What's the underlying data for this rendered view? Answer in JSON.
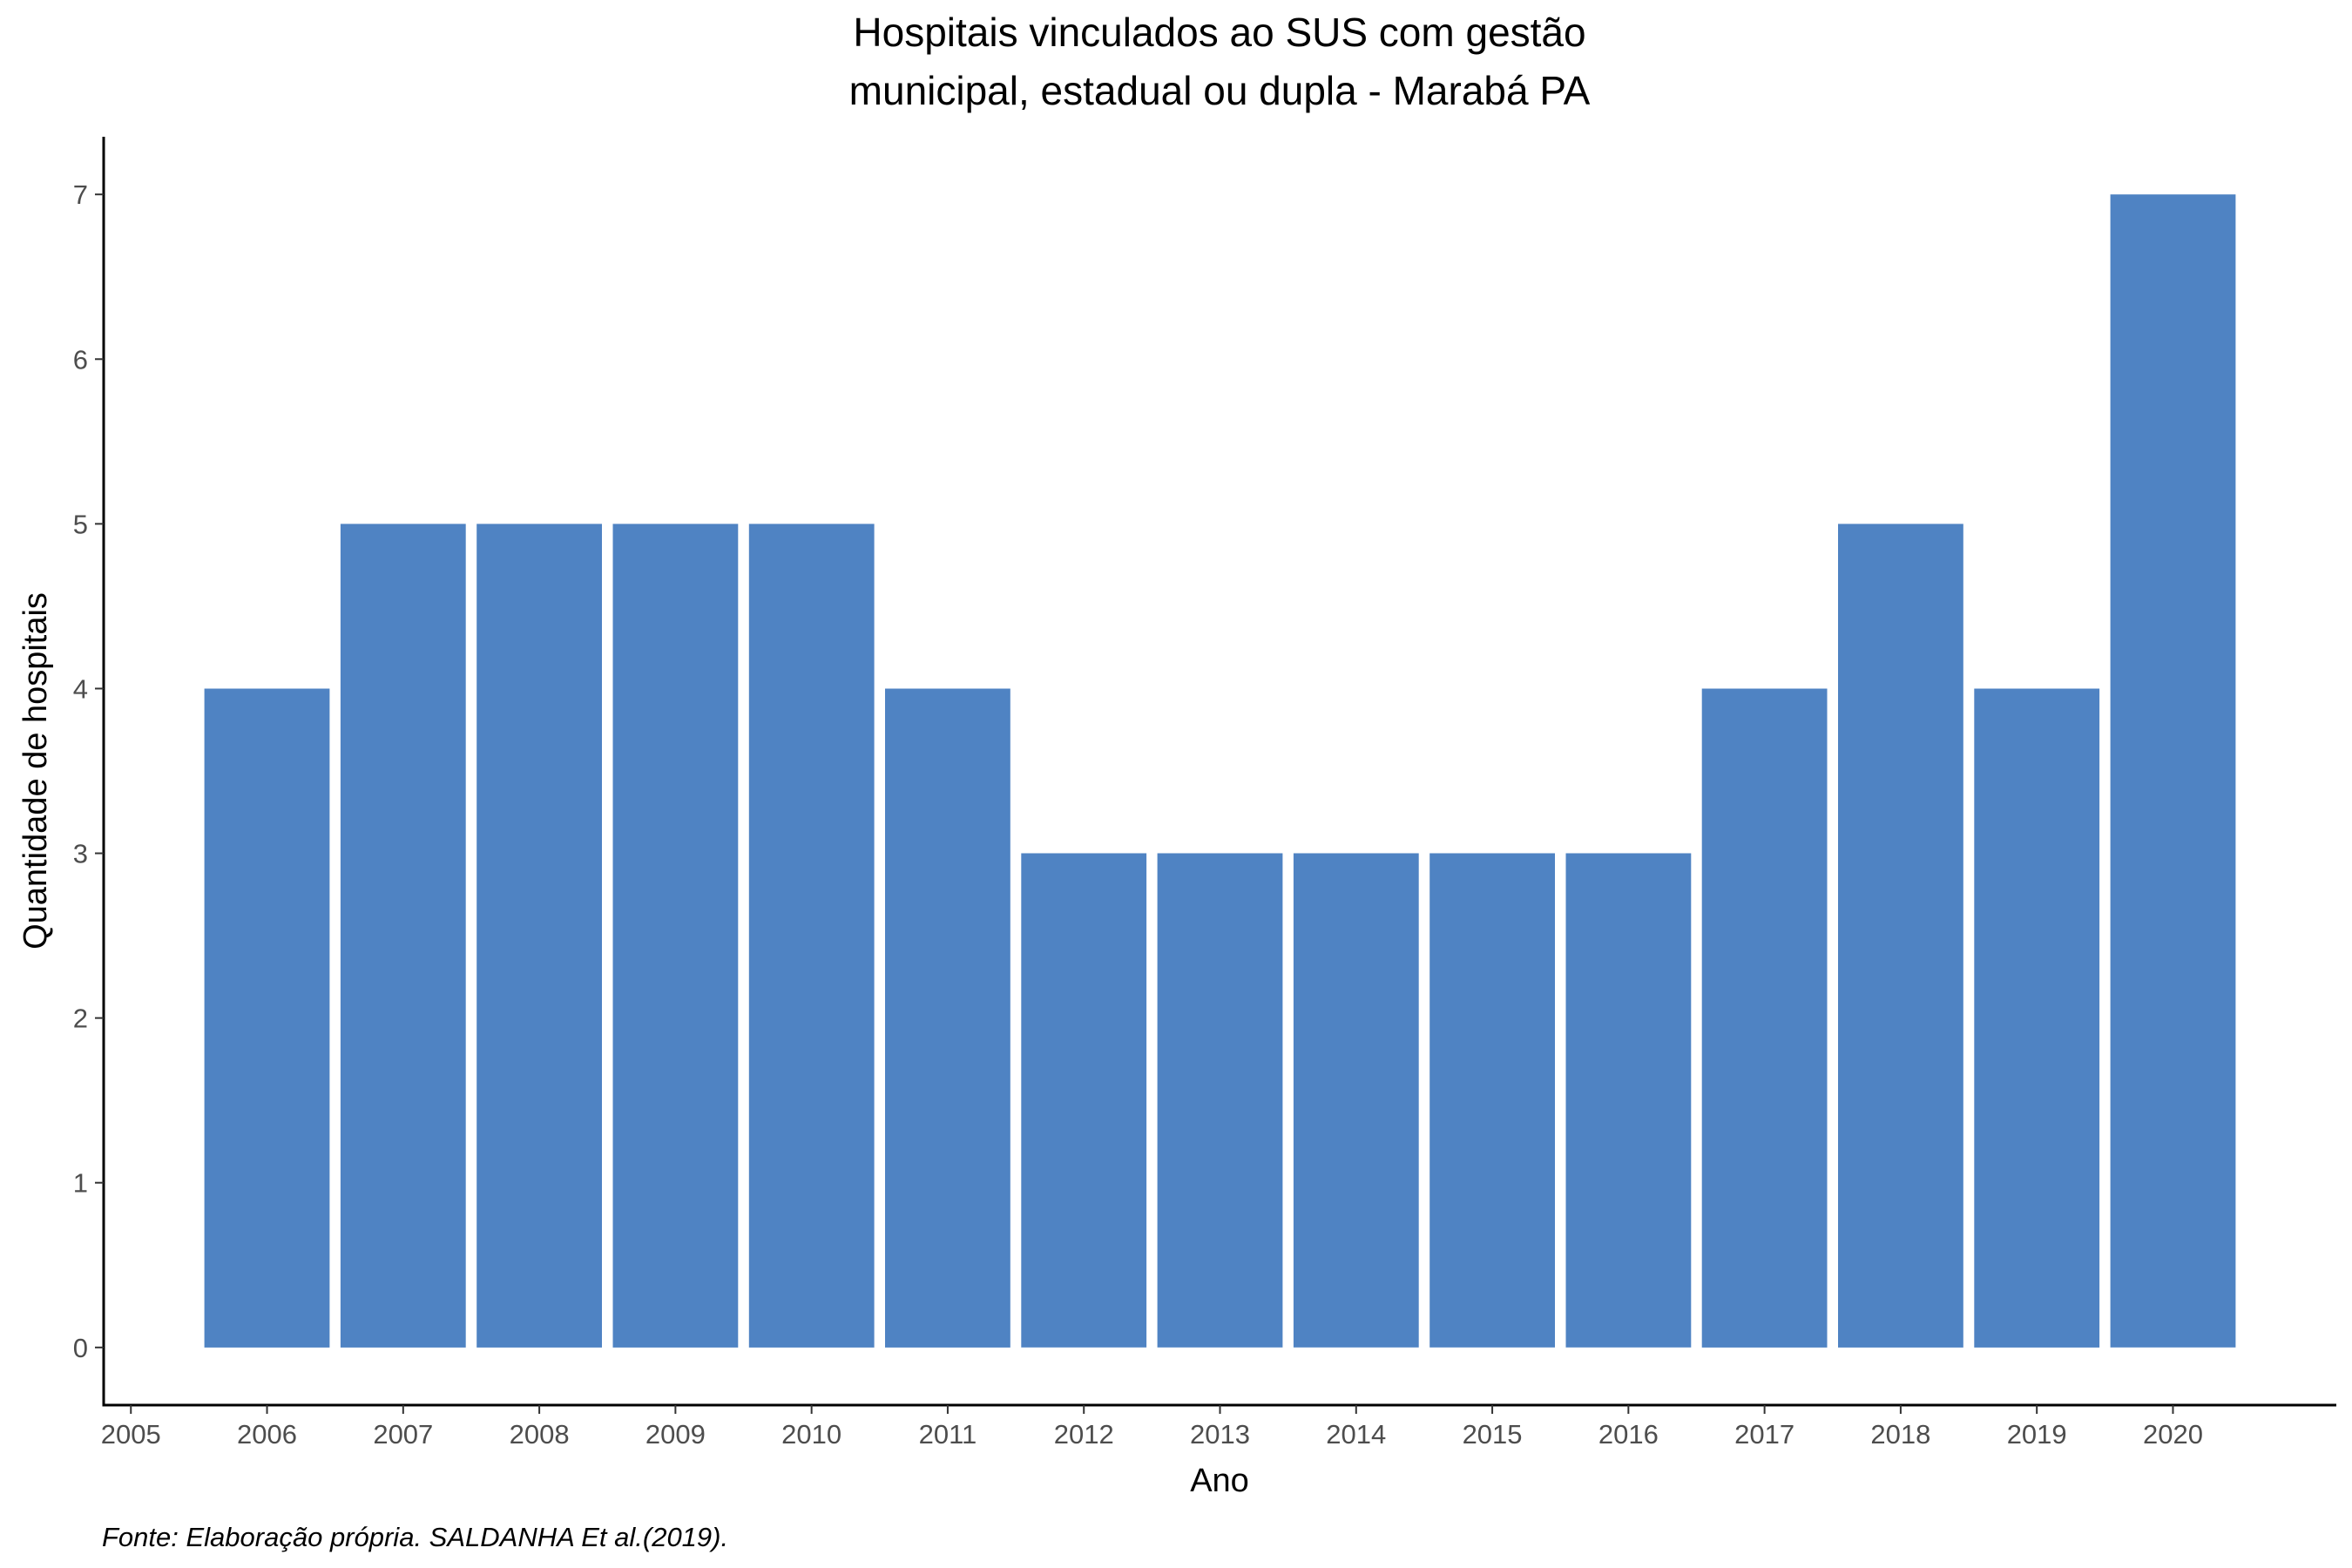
{
  "chart_data": {
    "type": "bar",
    "title_lines": [
      "Hospitais vinculados ao SUS com gestão",
      "municipal, estadual ou dupla -  Marabá PA"
    ],
    "xlabel": "Ano",
    "ylabel": "Quantidade de hospitais",
    "caption": "Fonte: Elaboração própria. SALDANHA Et al.(2019).",
    "categories": [
      2006,
      2007,
      2008,
      2009,
      2010,
      2011,
      2012,
      2013,
      2014,
      2015,
      2016,
      2017,
      2018,
      2019,
      2020
    ],
    "values": [
      4,
      5,
      5,
      5,
      5,
      4,
      3,
      3,
      3,
      3,
      3,
      4,
      5,
      4,
      7
    ],
    "x_ticks": [
      "2005",
      "2006",
      "2007",
      "2008",
      "2009",
      "2010",
      "2011",
      "2012",
      "2013",
      "2014",
      "2015",
      "2016",
      "2017",
      "2018",
      "2019",
      "2020"
    ],
    "y_ticks": [
      "0",
      "1",
      "2",
      "3",
      "4",
      "5",
      "6",
      "7"
    ],
    "xlim": [
      2004.8,
      2021.2
    ],
    "ylim": [
      -0.35,
      7.35
    ],
    "bar_color": "#4f83c3",
    "grid": false,
    "legend": "none"
  }
}
